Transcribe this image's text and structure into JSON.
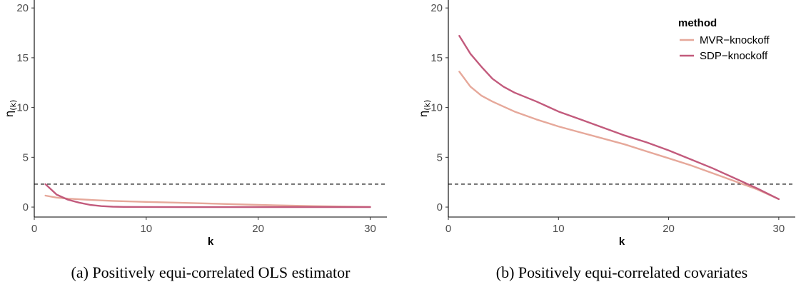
{
  "chart_data": [
    {
      "type": "line",
      "caption": "(a) Positively equi-correlated OLS estimator",
      "xlabel": "k",
      "ylabel": "η(k)",
      "xlim": [
        0,
        31.5
      ],
      "ylim": [
        -1,
        20.8
      ],
      "xticks": [
        0,
        10,
        20,
        30
      ],
      "yticks": [
        0,
        5,
        10,
        15,
        20
      ],
      "hline": 2.3,
      "legend": null,
      "series": [
        {
          "name": "MVR−knockoff",
          "color": "#E6A89A",
          "x": [
            1,
            2,
            3,
            5,
            7,
            10,
            15,
            20,
            25,
            30
          ],
          "y": [
            1.15,
            0.95,
            0.85,
            0.72,
            0.62,
            0.52,
            0.38,
            0.22,
            0.1,
            0.02
          ]
        },
        {
          "name": "SDP−knockoff",
          "color": "#C25A7C",
          "x": [
            1,
            2,
            3,
            4,
            5,
            6,
            7,
            8,
            10,
            15,
            20,
            25,
            30
          ],
          "y": [
            2.3,
            1.25,
            0.75,
            0.45,
            0.22,
            0.1,
            0.04,
            0.02,
            0.01,
            0.0,
            0.0,
            0.0,
            0.0
          ]
        }
      ]
    },
    {
      "type": "line",
      "caption": "(b) Positively equi-correlated covariates",
      "xlabel": "k",
      "ylabel": "η(k)",
      "xlim": [
        0,
        31.5
      ],
      "ylim": [
        -1,
        20.8
      ],
      "xticks": [
        0,
        10,
        20,
        30
      ],
      "yticks": [
        0,
        5,
        10,
        15,
        20
      ],
      "hline": 2.3,
      "legend": {
        "title": "method",
        "position": "top-right"
      },
      "series": [
        {
          "name": "MVR−knockoff",
          "color": "#E6A89A",
          "x": [
            1,
            2,
            3,
            4,
            5,
            6,
            8,
            10,
            12,
            14,
            16,
            18,
            20,
            22,
            24,
            26,
            28,
            30
          ],
          "y": [
            13.6,
            12.1,
            11.2,
            10.6,
            10.1,
            9.6,
            8.8,
            8.1,
            7.5,
            6.9,
            6.3,
            5.6,
            4.9,
            4.2,
            3.4,
            2.6,
            1.8,
            0.8
          ]
        },
        {
          "name": "SDP−knockoff",
          "color": "#C25A7C",
          "x": [
            1,
            2,
            3,
            4,
            5,
            6,
            8,
            10,
            12,
            14,
            16,
            18,
            20,
            22,
            24,
            26,
            28,
            30
          ],
          "y": [
            17.2,
            15.4,
            14.1,
            12.9,
            12.1,
            11.5,
            10.6,
            9.6,
            8.8,
            8.0,
            7.2,
            6.5,
            5.7,
            4.8,
            3.9,
            2.9,
            1.9,
            0.8
          ]
        }
      ]
    }
  ]
}
